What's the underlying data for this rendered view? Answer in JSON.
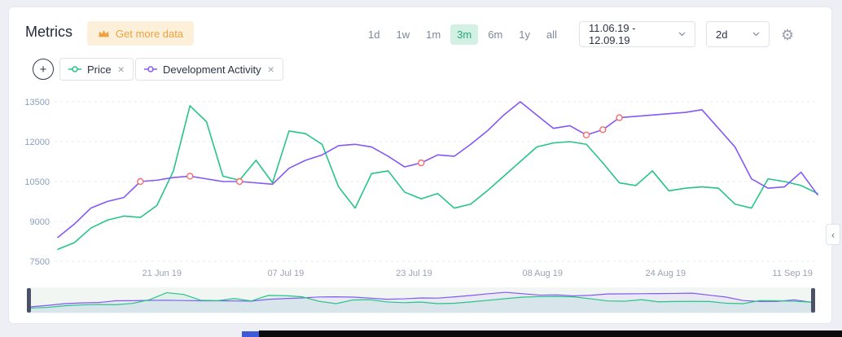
{
  "header": {
    "title": "Metrics",
    "get_more_data_label": "Get more data",
    "timeframes": [
      "1d",
      "1w",
      "1m",
      "3m",
      "6m",
      "1y",
      "all"
    ],
    "active_timeframe": "3m",
    "date_range": "11.06.19 - 12.09.19",
    "interval": "2d"
  },
  "icons": {
    "gear": "⚙",
    "plus": "+",
    "close": "×",
    "collapse": "‹"
  },
  "chips": {
    "price": {
      "label": "Price",
      "color": "#26c487"
    },
    "dev_activity": {
      "label": "Development Activity",
      "color": "#8358f6"
    }
  },
  "chart_data": {
    "type": "line",
    "y_ticks": [
      7500,
      9000,
      10500,
      12000,
      13500
    ],
    "ylim": [
      7500,
      13800
    ],
    "grid": "horizontal-dashed",
    "x_range": [
      "11.06.19",
      "12.09.19"
    ],
    "interval": "2d",
    "x_tick_labels": [
      {
        "label": "21 Jun 19",
        "f": 0.137
      },
      {
        "label": "07 Jul 19",
        "f": 0.3
      },
      {
        "label": "23 Jul 19",
        "f": 0.469
      },
      {
        "label": "08 Aug 19",
        "f": 0.638
      },
      {
        "label": "24 Aug 19",
        "f": 0.8
      },
      {
        "label": "11 Sep 19",
        "f": 0.967
      }
    ],
    "series": [
      {
        "name": "Price",
        "color": "#26c487",
        "values": [
          7950,
          8200,
          8750,
          9050,
          9200,
          9150,
          9600,
          10900,
          13350,
          12750,
          10700,
          10550,
          11300,
          10450,
          12400,
          12300,
          11900,
          10300,
          9500,
          10800,
          10900,
          10100,
          9850,
          10050,
          9500,
          9650,
          10150,
          10700,
          11250,
          11800,
          11950,
          12000,
          11900,
          11200,
          10450,
          10350,
          10900,
          10150,
          10250,
          10300,
          10250,
          9650,
          9500,
          10600,
          10500,
          10350,
          10050
        ]
      },
      {
        "name": "Development Activity",
        "color": "#8358f6",
        "values": [
          8400,
          8900,
          9500,
          9750,
          9900,
          10500,
          10550,
          10650,
          10700,
          10600,
          10500,
          10500,
          10450,
          10400,
          11000,
          11300,
          11500,
          11850,
          11900,
          11800,
          11450,
          11050,
          11200,
          11500,
          11450,
          11900,
          12400,
          13000,
          13500,
          13000,
          12500,
          12600,
          12250,
          12450,
          12900,
          12950,
          13000,
          13050,
          13100,
          13200,
          12500,
          11800,
          10600,
          10250,
          10300,
          10850,
          10000
        ]
      }
    ],
    "markers": {
      "series": "Development Activity",
      "color": "#f76c6c",
      "indices": [
        5,
        8,
        11,
        22,
        32,
        33,
        34
      ]
    }
  },
  "navigator": {
    "range_selected": "full"
  }
}
